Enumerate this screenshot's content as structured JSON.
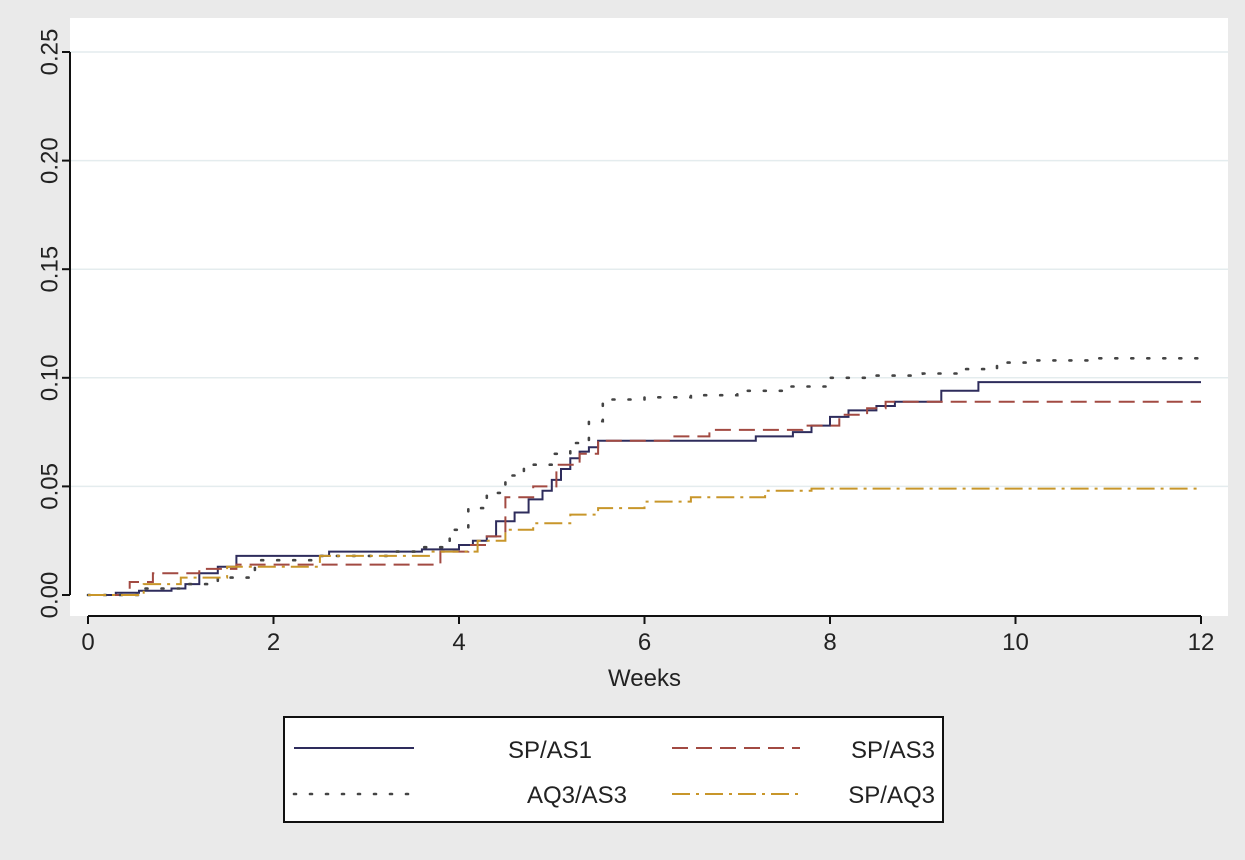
{
  "chart_data": {
    "type": "line",
    "step": true,
    "title": "",
    "xlabel": "Weeks",
    "ylabel": "",
    "xlim": [
      0,
      12
    ],
    "ylim": [
      0,
      0.25
    ],
    "x_ticks": [
      0,
      2,
      4,
      6,
      8,
      10,
      12
    ],
    "x_tick_labels": [
      "0",
      "2",
      "4",
      "6",
      "8",
      "10",
      "12"
    ],
    "y_ticks": [
      0,
      0.05,
      0.1,
      0.15,
      0.2,
      0.25
    ],
    "y_tick_labels": [
      "0.00",
      "0.05",
      "0.10",
      "0.15",
      "0.20",
      "0.25"
    ],
    "grid": "horizontal",
    "legend_position": "bottom",
    "series": [
      {
        "name": "SP/AS1",
        "color": "#2e2c5c",
        "dash": "solid",
        "x": [
          0,
          0.3,
          0.55,
          0.9,
          1.05,
          1.2,
          1.4,
          1.6,
          2.6,
          3.6,
          4.0,
          4.15,
          4.3,
          4.4,
          4.6,
          4.75,
          4.9,
          5.0,
          5.1,
          5.2,
          5.3,
          5.4,
          5.5,
          6.4,
          7.2,
          7.6,
          7.8,
          8.0,
          8.2,
          8.5,
          8.7,
          9.2,
          9.6,
          12.0
        ],
        "y": [
          0,
          0.001,
          0.002,
          0.003,
          0.005,
          0.01,
          0.013,
          0.018,
          0.02,
          0.021,
          0.023,
          0.025,
          0.027,
          0.034,
          0.038,
          0.044,
          0.048,
          0.053,
          0.058,
          0.063,
          0.066,
          0.068,
          0.071,
          0.071,
          0.073,
          0.075,
          0.078,
          0.082,
          0.085,
          0.087,
          0.089,
          0.094,
          0.098,
          0.098
        ]
      },
      {
        "name": "SP/AS3",
        "color": "#a24a42",
        "dash": "dashed",
        "x": [
          0,
          0.45,
          0.7,
          1.2,
          1.6,
          2.2,
          3.4,
          3.8,
          4.1,
          4.3,
          4.5,
          4.8,
          5.05,
          5.3,
          5.5,
          6.3,
          6.7,
          7.7,
          8.1,
          8.4,
          8.6,
          9.0,
          9.4,
          12.0
        ],
        "y": [
          0,
          0.006,
          0.01,
          0.012,
          0.014,
          0.014,
          0.014,
          0.02,
          0.023,
          0.027,
          0.045,
          0.05,
          0.06,
          0.065,
          0.071,
          0.073,
          0.076,
          0.078,
          0.083,
          0.086,
          0.089,
          0.089,
          0.089,
          0.089
        ]
      },
      {
        "name": "AQ3/AS3",
        "color": "#444444",
        "dash": "dotted",
        "x": [
          0,
          0.6,
          1.0,
          1.4,
          1.8,
          2.5,
          3.3,
          3.6,
          3.9,
          4.1,
          4.3,
          4.5,
          4.7,
          5.0,
          5.2,
          5.4,
          5.55,
          6.0,
          6.5,
          7.0,
          7.5,
          8.0,
          8.5,
          9.0,
          9.4,
          9.8,
          10.2,
          10.8,
          12.0
        ],
        "y": [
          0,
          0.003,
          0.005,
          0.008,
          0.016,
          0.018,
          0.02,
          0.022,
          0.03,
          0.04,
          0.047,
          0.055,
          0.06,
          0.065,
          0.07,
          0.08,
          0.09,
          0.091,
          0.092,
          0.094,
          0.096,
          0.1,
          0.101,
          0.102,
          0.104,
          0.107,
          0.108,
          0.109,
          0.109
        ]
      },
      {
        "name": "SP/AQ3",
        "color": "#c8962a",
        "dash": "dashdot",
        "x": [
          0,
          0.6,
          1.0,
          1.5,
          2.5,
          3.7,
          4.2,
          4.5,
          4.8,
          5.2,
          5.5,
          6.0,
          6.5,
          7.3,
          7.8,
          12.0
        ],
        "y": [
          0,
          0.005,
          0.008,
          0.013,
          0.018,
          0.02,
          0.025,
          0.03,
          0.033,
          0.037,
          0.04,
          0.043,
          0.045,
          0.048,
          0.049,
          0.049
        ]
      }
    ]
  }
}
